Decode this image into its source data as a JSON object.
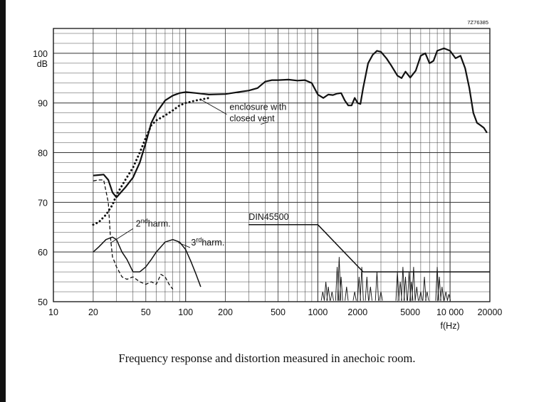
{
  "figure_id": "7Z76385",
  "caption": "Frequency response and distortion measured in anechoic room.",
  "chart_data": {
    "type": "line",
    "xscale": "log",
    "xlim": [
      10,
      20000
    ],
    "ylim": [
      50,
      105
    ],
    "grid": true,
    "xlabel": "f(Hz)",
    "ylabel": "dB",
    "x_ticks": [
      10,
      20,
      50,
      100,
      200,
      500,
      1000,
      2000,
      5000,
      10000,
      20000
    ],
    "x_tick_labels": [
      "10",
      "20",
      "50",
      "100",
      "200",
      "500",
      "1000",
      "2000",
      "5000",
      "10 000",
      "20000"
    ],
    "y_ticks": [
      50,
      60,
      70,
      80,
      90,
      100
    ],
    "series": [
      {
        "style": "solid",
        "x": [
          20,
          22,
          24,
          26,
          28,
          30,
          35,
          40,
          45,
          50,
          55,
          60,
          70,
          80,
          90,
          100,
          120,
          150,
          200,
          250,
          300,
          350,
          400,
          450,
          500,
          600,
          700,
          800,
          900,
          1000,
          1100,
          1200,
          1300,
          1400,
          1500,
          1600,
          1700,
          1800,
          1900,
          2000,
          2100,
          2200,
          2400,
          2600,
          2800,
          3000,
          3300,
          3600,
          4000,
          4300,
          4600,
          5000,
          5500,
          6000,
          6500,
          7000,
          7500,
          8000,
          9000,
          10000,
          11000,
          12000,
          13000,
          14000,
          15000,
          16000,
          17000,
          18000,
          19000
        ],
        "y": [
          75.4,
          75.5,
          75.6,
          74.5,
          72,
          71,
          73,
          75,
          78,
          82,
          86,
          88,
          90.5,
          91.5,
          92,
          92.2,
          92,
          91.7,
          91.8,
          92.2,
          92.5,
          93,
          94.3,
          94.6,
          94.6,
          94.7,
          94.5,
          94.6,
          94,
          91.7,
          91,
          91.7,
          91.6,
          91.9,
          92,
          90.5,
          89.5,
          89.5,
          91,
          90,
          89.8,
          93,
          98,
          99.7,
          100.5,
          100.3,
          99,
          97.5,
          95.5,
          95,
          96.3,
          95.1,
          96.5,
          99.5,
          100,
          98,
          98.5,
          100.5,
          101,
          100.5,
          99,
          99.5,
          97,
          93,
          88,
          86,
          85.5,
          85,
          84
        ]
      },
      {
        "name": "enclosure with closed vent",
        "style": "dotted",
        "x": [
          20,
          22,
          25,
          28,
          30,
          35,
          40,
          45,
          50,
          55,
          60,
          70,
          80,
          90,
          100,
          120,
          150
        ],
        "y": [
          65.5,
          66,
          67.5,
          69.5,
          71.5,
          74.5,
          77,
          80,
          83,
          85.5,
          86.5,
          87.5,
          88.5,
          89.5,
          90,
          90.5,
          91
        ]
      },
      {
        "name": "2nd harm.",
        "style": "dashed",
        "x": [
          20,
          22,
          24,
          26,
          27,
          28,
          29,
          30,
          33,
          36,
          40,
          45,
          50,
          55,
          60,
          65,
          70,
          75,
          80
        ],
        "y": [
          74.3,
          74.5,
          74.5,
          70,
          63,
          59,
          58,
          57,
          55,
          54.5,
          55,
          54,
          53.5,
          54,
          53.5,
          55.5,
          55,
          53.5,
          52.5
        ]
      },
      {
        "name": "3rd harm.",
        "style": "solid",
        "x": [
          20,
          22,
          25,
          28,
          30,
          33,
          36,
          40,
          45,
          50,
          55,
          60,
          70,
          80,
          90,
          100,
          110,
          120,
          130
        ],
        "y": [
          60,
          61,
          62.5,
          63,
          62.5,
          60,
          58.5,
          56,
          56,
          57,
          58.5,
          60,
          62,
          62.5,
          62,
          60.5,
          58,
          55.5,
          53
        ]
      },
      {
        "name": "DIN45500",
        "style": "solid",
        "x": [
          300,
          1000,
          2200,
          20000
        ],
        "y": [
          65.5,
          65.5,
          56,
          56
        ]
      }
    ],
    "annotations": [
      {
        "text": "enclosure with",
        "x": 215,
        "y": 88.6
      },
      {
        "text": "closed vent",
        "x": 215,
        "y": 86.3
      },
      {
        "text": "2",
        "sup": "nd",
        "rest": "harm.",
        "x": 42,
        "y": 65.1
      },
      {
        "text": "3",
        "sup": "rd",
        "rest": "harm.",
        "x": 110,
        "y": 61.3
      },
      {
        "text": "DIN45500",
        "x": 300,
        "y": 66.5
      }
    ]
  }
}
